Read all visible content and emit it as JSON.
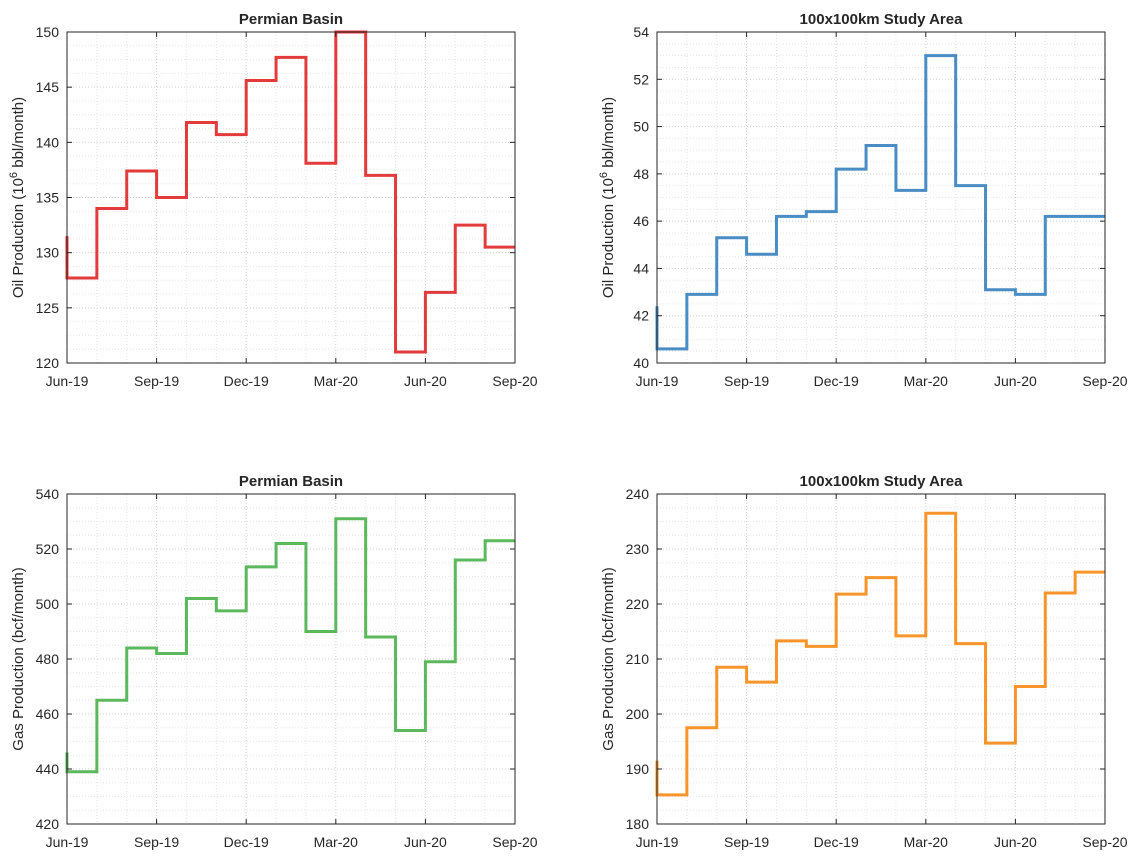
{
  "chart_data": [
    {
      "type": "line",
      "step": true,
      "title": "Permian Basin",
      "ylabel_parts": [
        "Oil Production (10",
        "6",
        " bbl/month)"
      ],
      "x_ticks": [
        "Jun-19",
        "Sep-19",
        "Dec-19",
        "Mar-20",
        "Jun-20",
        "Sep-20"
      ],
      "ylim": [
        120,
        150
      ],
      "y_ticks": [
        120,
        125,
        130,
        135,
        140,
        145,
        150
      ],
      "grid": true,
      "color": "#e33b3b",
      "x": [
        "2019-06",
        "2019-07",
        "2019-08",
        "2019-09",
        "2019-10",
        "2019-11",
        "2019-12",
        "2020-01",
        "2020-02",
        "2020-03",
        "2020-04",
        "2020-05",
        "2020-06",
        "2020-07",
        "2020-08",
        "2020-09"
      ],
      "start_value": 131.5,
      "values": [
        127.7,
        134.0,
        137.4,
        135.0,
        141.8,
        140.7,
        145.6,
        147.7,
        138.1,
        150.0,
        137.0,
        121.0,
        126.4,
        132.5,
        130.5,
        130.5
      ]
    },
    {
      "type": "line",
      "step": true,
      "title": "100x100km Study Area",
      "ylabel_parts": [
        "Oil Production (10",
        "6",
        " bbl/month)"
      ],
      "x_ticks": [
        "Jun-19",
        "Sep-19",
        "Dec-19",
        "Mar-20",
        "Jun-20",
        "Sep-20"
      ],
      "ylim": [
        40,
        54
      ],
      "y_ticks": [
        40,
        42,
        44,
        46,
        48,
        50,
        52,
        54
      ],
      "grid": true,
      "color": "#4a8cc4",
      "x": [
        "2019-06",
        "2019-07",
        "2019-08",
        "2019-09",
        "2019-10",
        "2019-11",
        "2019-12",
        "2020-01",
        "2020-02",
        "2020-03",
        "2020-04",
        "2020-05",
        "2020-06",
        "2020-07",
        "2020-08",
        "2020-09"
      ],
      "start_value": 42.4,
      "values": [
        40.6,
        42.9,
        45.3,
        44.6,
        46.2,
        46.4,
        48.2,
        49.2,
        47.3,
        53.0,
        47.5,
        43.1,
        42.9,
        46.2,
        46.2,
        46.2
      ]
    },
    {
      "type": "line",
      "step": true,
      "title": "Permian Basin",
      "ylabel_parts": [
        "Gas Production (bcf/month)"
      ],
      "x_ticks": [
        "Jun-19",
        "Sep-19",
        "Dec-19",
        "Mar-20",
        "Jun-20",
        "Sep-20"
      ],
      "ylim": [
        420,
        540
      ],
      "y_ticks": [
        420,
        440,
        460,
        480,
        500,
        520,
        540
      ],
      "grid": true,
      "color": "#5cb85c",
      "x": [
        "2019-06",
        "2019-07",
        "2019-08",
        "2019-09",
        "2019-10",
        "2019-11",
        "2019-12",
        "2020-01",
        "2020-02",
        "2020-03",
        "2020-04",
        "2020-05",
        "2020-06",
        "2020-07",
        "2020-08",
        "2020-09"
      ],
      "start_value": 446,
      "values": [
        439,
        465,
        484,
        482,
        502,
        497.5,
        513.5,
        522,
        490,
        531,
        488,
        454,
        479,
        516,
        523,
        523
      ]
    },
    {
      "type": "line",
      "step": true,
      "title": "100x100km Study Area",
      "ylabel_parts": [
        "Gas Production (bcf/month)"
      ],
      "x_ticks": [
        "Jun-19",
        "Sep-19",
        "Dec-19",
        "Mar-20",
        "Jun-20",
        "Sep-20"
      ],
      "ylim": [
        180,
        240
      ],
      "y_ticks": [
        180,
        190,
        200,
        210,
        220,
        230,
        240
      ],
      "grid": true,
      "color": "#f7952a",
      "x": [
        "2019-06",
        "2019-07",
        "2019-08",
        "2019-09",
        "2019-10",
        "2019-11",
        "2019-12",
        "2020-01",
        "2020-02",
        "2020-03",
        "2020-04",
        "2020-05",
        "2020-06",
        "2020-07",
        "2020-08",
        "2020-09"
      ],
      "start_value": 191.5,
      "values": [
        185.3,
        197.5,
        208.5,
        205.8,
        213.3,
        212.3,
        221.8,
        224.8,
        214.2,
        236.5,
        212.8,
        194.7,
        205.0,
        222.0,
        225.8,
        225.8
      ]
    }
  ]
}
